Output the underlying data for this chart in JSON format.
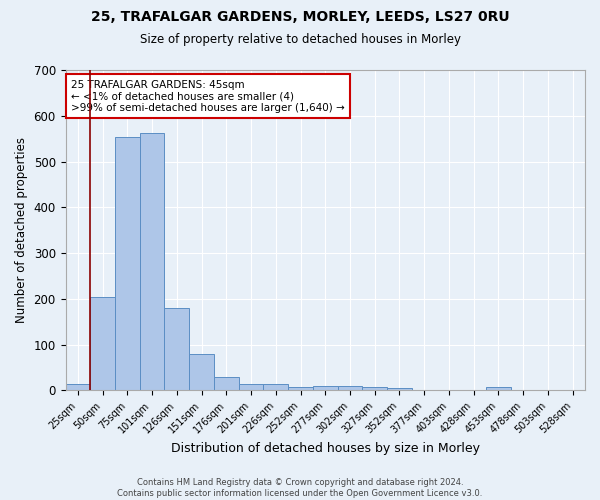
{
  "title1": "25, TRAFALGAR GARDENS, MORLEY, LEEDS, LS27 0RU",
  "title2": "Size of property relative to detached houses in Morley",
  "xlabel": "Distribution of detached houses by size in Morley",
  "ylabel": "Number of detached properties",
  "footnote1": "Contains HM Land Registry data © Crown copyright and database right 2024.",
  "footnote2": "Contains public sector information licensed under the Open Government Licence v3.0.",
  "categories": [
    "25sqm",
    "50sqm",
    "75sqm",
    "101sqm",
    "126sqm",
    "151sqm",
    "176sqm",
    "201sqm",
    "226sqm",
    "252sqm",
    "277sqm",
    "302sqm",
    "327sqm",
    "352sqm",
    "377sqm",
    "403sqm",
    "428sqm",
    "453sqm",
    "478sqm",
    "503sqm",
    "528sqm"
  ],
  "values": [
    13,
    204,
    554,
    563,
    179,
    79,
    29,
    14,
    13,
    7,
    10,
    10,
    8,
    5,
    0,
    0,
    0,
    7,
    0,
    0,
    0
  ],
  "bar_color": "#aec6e8",
  "bar_edge_color": "#5b8ec4",
  "bg_color": "#e8f0f8",
  "grid_color": "#ffffff",
  "red_line_color": "#8b0000",
  "annotation_text": "25 TRAFALGAR GARDENS: 45sqm\n← <1% of detached houses are smaller (4)\n>99% of semi-detached houses are larger (1,640) →",
  "annotation_box_edge": "#cc0000",
  "ylim": [
    0,
    700
  ],
  "yticks": [
    0,
    100,
    200,
    300,
    400,
    500,
    600,
    700
  ],
  "property_line_x": 0.5
}
